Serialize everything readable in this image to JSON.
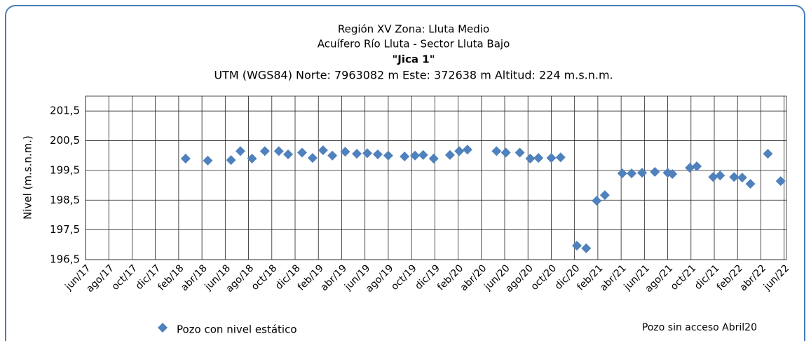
{
  "chart_data": {
    "type": "scatter",
    "title": "Región XV Zona:  Lluta Medio",
    "subtitle": "Acuífero Río Lluta - Sector Lluta Bajo",
    "well_name": "\"Jica  1\"",
    "location": "UTM (WGS84) Norte: 7963082 m Este: 372638 m   Altitud: 224 m.s.n.m.",
    "y_label": "Nivel (m.s.n.m.)",
    "annotation": "Pozo sin acceso  Abril20",
    "grid": true,
    "xlim": [
      0,
      60.2
    ],
    "xticks": [
      {
        "value": 0,
        "label": "jun/17"
      },
      {
        "value": 2,
        "label": "ago/17"
      },
      {
        "value": 4,
        "label": "oct/17"
      },
      {
        "value": 6,
        "label": "dic/17"
      },
      {
        "value": 8,
        "label": "feb/18"
      },
      {
        "value": 10,
        "label": "abr/18"
      },
      {
        "value": 12,
        "label": "jun/18"
      },
      {
        "value": 14,
        "label": "ago/18"
      },
      {
        "value": 16,
        "label": "oct/18"
      },
      {
        "value": 18,
        "label": "dic/18"
      },
      {
        "value": 20,
        "label": "feb/19"
      },
      {
        "value": 22,
        "label": "abr/19"
      },
      {
        "value": 24,
        "label": "jun/19"
      },
      {
        "value": 26,
        "label": "ago/19"
      },
      {
        "value": 28,
        "label": "oct/19"
      },
      {
        "value": 30,
        "label": "dic/19"
      },
      {
        "value": 32,
        "label": "feb/20"
      },
      {
        "value": 34,
        "label": "abr/20"
      },
      {
        "value": 36,
        "label": "jun/20"
      },
      {
        "value": 38,
        "label": "ago/20"
      },
      {
        "value": 40,
        "label": "oct/20"
      },
      {
        "value": 42,
        "label": "dic/20"
      },
      {
        "value": 44,
        "label": "feb/21"
      },
      {
        "value": 46,
        "label": "abr/21"
      },
      {
        "value": 48,
        "label": "jun/21"
      },
      {
        "value": 50,
        "label": "ago/21"
      },
      {
        "value": 52,
        "label": "oct/21"
      },
      {
        "value": 54,
        "label": "dic/21"
      },
      {
        "value": 56,
        "label": "feb/22"
      },
      {
        "value": 58,
        "label": "abr/22"
      },
      {
        "value": 60,
        "label": "jun/22"
      }
    ],
    "ylim": [
      196.5,
      202
    ],
    "yticks": [
      {
        "value": 196.5,
        "label": "196,5"
      },
      {
        "value": 197.5,
        "label": "197,5"
      },
      {
        "value": 198.5,
        "label": "198,5"
      },
      {
        "value": 199.5,
        "label": "199,5"
      },
      {
        "value": 200.5,
        "label": "200,5"
      },
      {
        "value": 201.5,
        "label": "201,5"
      }
    ],
    "series": [
      {
        "name": "Pozo con nivel estático",
        "color": "#4f81bd",
        "x": [
          8.6,
          10.5,
          12.5,
          13.3,
          14.3,
          15.4,
          16.6,
          17.4,
          18.6,
          19.5,
          20.4,
          21.2,
          22.3,
          23.3,
          24.2,
          25.1,
          26.0,
          27.4,
          28.3,
          29.0,
          29.9,
          31.3,
          32.1,
          32.8,
          35.3,
          36.1,
          37.3,
          38.2,
          38.9,
          40.0,
          40.8,
          42.2,
          43.0,
          43.9,
          44.6,
          46.1,
          46.9,
          47.8,
          48.9,
          50.0,
          50.4,
          51.9,
          52.5,
          53.9,
          54.5,
          55.7,
          56.4,
          57.1,
          58.6,
          59.7
        ],
        "values": [
          199.9,
          199.83,
          199.85,
          200.15,
          199.9,
          200.15,
          200.15,
          200.04,
          200.1,
          199.92,
          200.18,
          200.0,
          200.13,
          200.06,
          200.08,
          200.04,
          200.0,
          199.97,
          200.0,
          200.02,
          199.9,
          200.02,
          200.15,
          200.2,
          200.15,
          200.1,
          200.1,
          199.9,
          199.92,
          199.92,
          199.94,
          196.97,
          196.88,
          198.48,
          198.67,
          199.4,
          199.4,
          199.42,
          199.45,
          199.42,
          199.38,
          199.59,
          199.64,
          199.28,
          199.33,
          199.28,
          199.26,
          199.05,
          200.06,
          199.14
        ]
      }
    ]
  }
}
